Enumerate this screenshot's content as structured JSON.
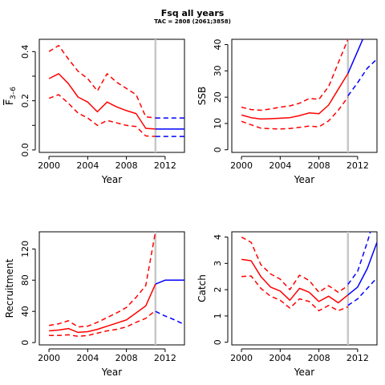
{
  "title": "Fsq all years",
  "subtitle": "TAC = 2808 (2061;3858)",
  "colors": {
    "historical": "#ff0000",
    "projection": "#0000ff",
    "divider": "#c8c8c8",
    "axis": "#000000"
  },
  "chart_data": [
    {
      "id": "fbar",
      "type": "line",
      "ylabel": "F̅ 3–6",
      "ylabel_main": "F",
      "ylabel_sub": "3–6",
      "xlabel": "Year",
      "xlim": [
        1999,
        2014
      ],
      "ylim": [
        -0.01,
        0.45
      ],
      "xticks": [
        2000,
        2004,
        2008,
        2012
      ],
      "yticks": [
        0,
        0.1,
        0.2,
        0.3,
        0.4
      ],
      "ytick_labels": [
        "0.0",
        "",
        "0.2",
        "",
        "0.4"
      ],
      "divider_x": 2011,
      "series": [
        {
          "role": "historical",
          "style": "solid",
          "x": [
            2000,
            2001,
            2002,
            2003,
            2004,
            2005,
            2006,
            2007,
            2008,
            2009,
            2010,
            2011
          ],
          "y": [
            0.29,
            0.31,
            0.27,
            0.215,
            0.195,
            0.155,
            0.195,
            0.175,
            0.16,
            0.148,
            0.088,
            0.085
          ]
        },
        {
          "role": "historical",
          "style": "dashed",
          "x": [
            2000,
            2001,
            2002,
            2003,
            2004,
            2005,
            2006,
            2007,
            2008,
            2009,
            2010,
            2011
          ],
          "y": [
            0.4,
            0.425,
            0.37,
            0.32,
            0.29,
            0.24,
            0.31,
            0.275,
            0.25,
            0.225,
            0.135,
            0.13
          ]
        },
        {
          "role": "historical",
          "style": "dashed",
          "x": [
            2000,
            2001,
            2002,
            2003,
            2004,
            2005,
            2006,
            2007,
            2008,
            2009,
            2010,
            2011
          ],
          "y": [
            0.21,
            0.225,
            0.19,
            0.15,
            0.13,
            0.1,
            0.12,
            0.11,
            0.1,
            0.095,
            0.057,
            0.055
          ]
        },
        {
          "role": "projection",
          "style": "solid",
          "x": [
            2011,
            2012,
            2013,
            2014
          ],
          "y": [
            0.085,
            0.085,
            0.085,
            0.085
          ]
        },
        {
          "role": "projection",
          "style": "dashed",
          "x": [
            2011,
            2012,
            2013,
            2014
          ],
          "y": [
            0.13,
            0.13,
            0.13,
            0.13
          ]
        },
        {
          "role": "projection",
          "style": "dashed",
          "x": [
            2011,
            2012,
            2013,
            2014
          ],
          "y": [
            0.055,
            0.055,
            0.055,
            0.055
          ]
        }
      ]
    },
    {
      "id": "ssb",
      "type": "line",
      "ylabel": "SSB",
      "xlabel": "Year",
      "xlim": [
        1999,
        2014
      ],
      "ylim": [
        -1,
        42
      ],
      "xticks": [
        2000,
        2004,
        2008,
        2012
      ],
      "yticks": [
        0,
        10,
        20,
        30,
        40
      ],
      "ytick_labels": [
        "0",
        "10",
        "20",
        "30",
        "40"
      ],
      "divider_x": 2011,
      "series": [
        {
          "role": "historical",
          "style": "solid",
          "x": [
            2000,
            2001,
            2002,
            2003,
            2004,
            2005,
            2006,
            2007,
            2008,
            2009,
            2010,
            2011
          ],
          "y": [
            13.2,
            12.2,
            11.7,
            11.8,
            12.0,
            12.2,
            13.0,
            14.0,
            13.7,
            17.0,
            23.0,
            29.0
          ]
        },
        {
          "role": "historical",
          "style": "dashed",
          "x": [
            2000,
            2001,
            2002,
            2003,
            2004,
            2005,
            2006,
            2007,
            2008,
            2009,
            2010,
            2011
          ],
          "y": [
            16.2,
            15.3,
            15.0,
            15.5,
            16.2,
            16.7,
            17.7,
            19.5,
            19.2,
            24.0,
            33.0,
            42.0
          ]
        },
        {
          "role": "historical",
          "style": "dashed",
          "x": [
            2000,
            2001,
            2002,
            2003,
            2004,
            2005,
            2006,
            2007,
            2008,
            2009,
            2010,
            2011
          ],
          "y": [
            10.8,
            9.5,
            8.2,
            8.0,
            7.9,
            8.1,
            8.5,
            9.0,
            8.7,
            11.0,
            15.0,
            20.0
          ]
        },
        {
          "role": "projection",
          "style": "solid",
          "x": [
            2011,
            2012,
            2013,
            2013.3
          ],
          "y": [
            29.0,
            37.5,
            46.0,
            49.0
          ]
        },
        {
          "role": "projection",
          "style": "dashed",
          "x": [
            2011,
            2011.2
          ],
          "y": [
            42.0,
            46.0
          ]
        },
        {
          "role": "projection",
          "style": "dashed",
          "x": [
            2011,
            2012,
            2013,
            2014
          ],
          "y": [
            20.5,
            25.5,
            31.0,
            34.5
          ]
        }
      ]
    },
    {
      "id": "recruitment",
      "type": "line",
      "ylabel": "Recruitment",
      "xlabel": "Year",
      "xlim": [
        1999,
        2014
      ],
      "ylim": [
        -3,
        142
      ],
      "xticks": [
        2000,
        2004,
        2008,
        2012
      ],
      "yticks": [
        0,
        40,
        80,
        120
      ],
      "ytick_labels": [
        "0",
        "40",
        "80",
        "120"
      ],
      "divider_x": 2011,
      "series": [
        {
          "role": "historical",
          "style": "solid",
          "x": [
            2000,
            2001,
            2002,
            2003,
            2004,
            2005,
            2006,
            2007,
            2008,
            2009,
            2010,
            2011
          ],
          "y": [
            15,
            16,
            18,
            13,
            14,
            17,
            21,
            25,
            29,
            38,
            47,
            75
          ]
        },
        {
          "role": "historical",
          "style": "dashed",
          "x": [
            2000,
            2001,
            2002,
            2003,
            2004,
            2005,
            2006,
            2007,
            2008,
            2009,
            2010,
            2011
          ],
          "y": [
            22,
            24,
            28,
            20,
            21,
            26,
            32,
            38,
            45,
            58,
            73,
            142
          ]
        },
        {
          "role": "historical",
          "style": "dashed",
          "x": [
            2000,
            2001,
            2002,
            2003,
            2004,
            2005,
            2006,
            2007,
            2008,
            2009,
            2010,
            2011
          ],
          "y": [
            9,
            9,
            10,
            8,
            9,
            12,
            15,
            17,
            20,
            26,
            31,
            41
          ]
        },
        {
          "role": "projection",
          "style": "solid",
          "x": [
            2011,
            2012,
            2013,
            2014
          ],
          "y": [
            75,
            80,
            80,
            80
          ]
        },
        {
          "role": "projection",
          "style": "dashed",
          "x": [
            2011,
            2011.2
          ],
          "y": [
            142,
            150
          ]
        },
        {
          "role": "projection",
          "style": "dashed",
          "x": [
            2011,
            2012,
            2013,
            2014
          ],
          "y": [
            40,
            34,
            29,
            23
          ]
        }
      ]
    },
    {
      "id": "catch",
      "type": "line",
      "ylabel": "Catch",
      "xlabel": "Year",
      "xlim": [
        1999,
        2014
      ],
      "ylim": [
        -0.1,
        4.2
      ],
      "xticks": [
        2000,
        2004,
        2008,
        2012
      ],
      "yticks": [
        0,
        1,
        2,
        3,
        4
      ],
      "ytick_labels": [
        "0",
        "1",
        "2",
        "3",
        "4"
      ],
      "divider_x": 2011,
      "series": [
        {
          "role": "historical",
          "style": "solid",
          "x": [
            2000,
            2001,
            2002,
            2003,
            2004,
            2005,
            2006,
            2007,
            2008,
            2009,
            2010,
            2011
          ],
          "y": [
            3.15,
            3.1,
            2.5,
            2.1,
            1.95,
            1.6,
            2.05,
            1.9,
            1.55,
            1.75,
            1.5,
            1.8
          ]
        },
        {
          "role": "historical",
          "style": "dashed",
          "x": [
            2000,
            2001,
            2002,
            2003,
            2004,
            2005,
            2006,
            2007,
            2008,
            2009,
            2010,
            2011
          ],
          "y": [
            4.0,
            3.8,
            2.95,
            2.6,
            2.4,
            2.0,
            2.55,
            2.35,
            1.9,
            2.15,
            1.9,
            2.15
          ]
        },
        {
          "role": "historical",
          "style": "dashed",
          "x": [
            2000,
            2001,
            2002,
            2003,
            2004,
            2005,
            2006,
            2007,
            2008,
            2009,
            2010,
            2011
          ],
          "y": [
            2.5,
            2.52,
            2.05,
            1.75,
            1.6,
            1.3,
            1.65,
            1.55,
            1.2,
            1.4,
            1.2,
            1.35
          ]
        },
        {
          "role": "projection",
          "style": "solid",
          "x": [
            2011,
            2012,
            2013,
            2014
          ],
          "y": [
            1.8,
            2.1,
            2.8,
            3.8
          ]
        },
        {
          "role": "projection",
          "style": "dashed",
          "x": [
            2011,
            2012,
            2013,
            2013.4
          ],
          "y": [
            2.2,
            2.7,
            3.8,
            4.3
          ]
        },
        {
          "role": "projection",
          "style": "dashed",
          "x": [
            2011,
            2012,
            2013,
            2014
          ],
          "y": [
            1.4,
            1.65,
            2.05,
            2.45
          ]
        }
      ]
    }
  ]
}
